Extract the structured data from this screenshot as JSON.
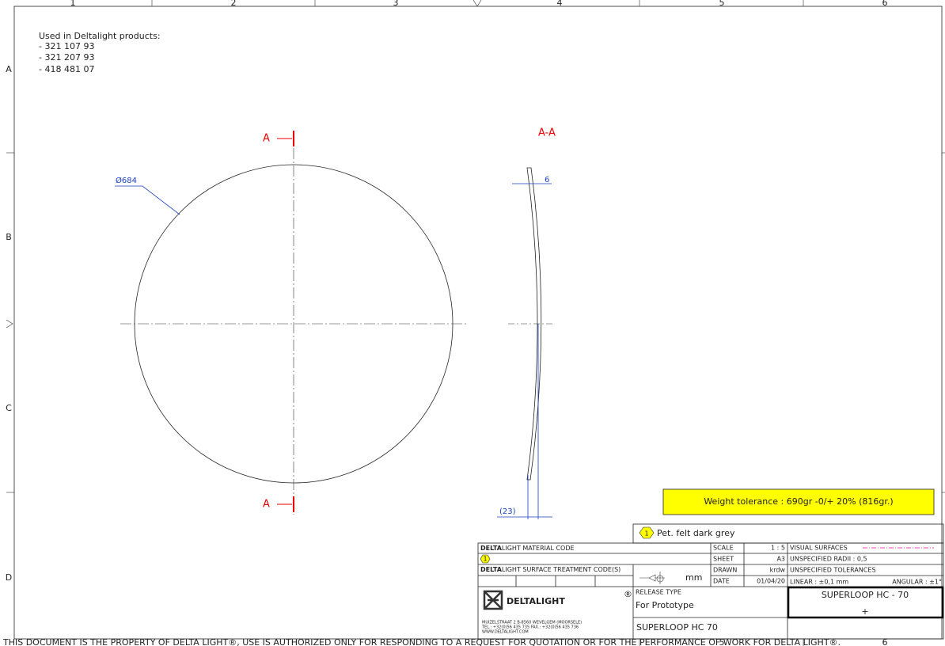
{
  "frame": {
    "columns_top": [
      "1",
      "2",
      "3",
      "4",
      "5",
      "6"
    ],
    "columns_bottom": [
      "5",
      "6"
    ],
    "rows": [
      "A",
      "B",
      "C",
      "D"
    ]
  },
  "notes": {
    "heading": "Used in Deltalight products:",
    "items": [
      "- 321 107 93",
      "- 321 207 93",
      "- 418 481 07"
    ]
  },
  "drawing": {
    "section_mark": "A",
    "section_mark_2": "A",
    "section_title": "A-A",
    "diameter": "Ø684",
    "thickness": "6",
    "depth": "(23)"
  },
  "weight_tolerance": "Weight tolerance : 690gr -0/+ 20% (816gr.)",
  "material": {
    "balloon": "1",
    "name": "Pet. felt dark grey"
  },
  "title_block": {
    "material_code_bold": "DELTA",
    "material_code": "LIGHT MATERIAL CODE",
    "material_balloon": "1",
    "surface_bold": "DELTA",
    "surface": "LIGHT SURFACE TREATMENT CODE(S)",
    "unit": "mm",
    "fields": [
      [
        "SCALE",
        "1 : 5"
      ],
      [
        "SHEET",
        "A3"
      ],
      [
        "DRAWN",
        "krdw"
      ],
      [
        "DATE",
        "01/04/20"
      ]
    ],
    "visual_surfaces": "VISUAL SURFACES",
    "radii": "UNSPECIFIED RADII :  0,5",
    "tolerances": "UNSPECIFIED TOLERANCES",
    "linear": "LINEAR :  ±0,1 mm",
    "angular": "ANGULAR :  ±1°",
    "logo": "DELTALIGHT",
    "registered": "®",
    "address": [
      "MUIZELSTRAAT 2    B-8560 WEVELGEM (MOORSELE)",
      "TEL.: +32(0)56 435 735     FAX.: +32(0)56 435 736",
      "WWW.DELTALIGHT.COM"
    ],
    "release_type_label": "RELEASE TYPE",
    "release_type": "For Prototype",
    "product": "SUPERLOOP HC 70",
    "part_name": "SUPERLOOP HC - 70",
    "part_mark": "+"
  },
  "footer": "THIS DOCUMENT IS THE PROPERTY OF DELTA LIGHT®, USE IS AUTHORIZED ONLY FOR RESPONDING TO A REQUEST FOR QUOTATION OR FOR THE PERFORMANCE OF WORK FOR DELTA LIGHT®."
}
